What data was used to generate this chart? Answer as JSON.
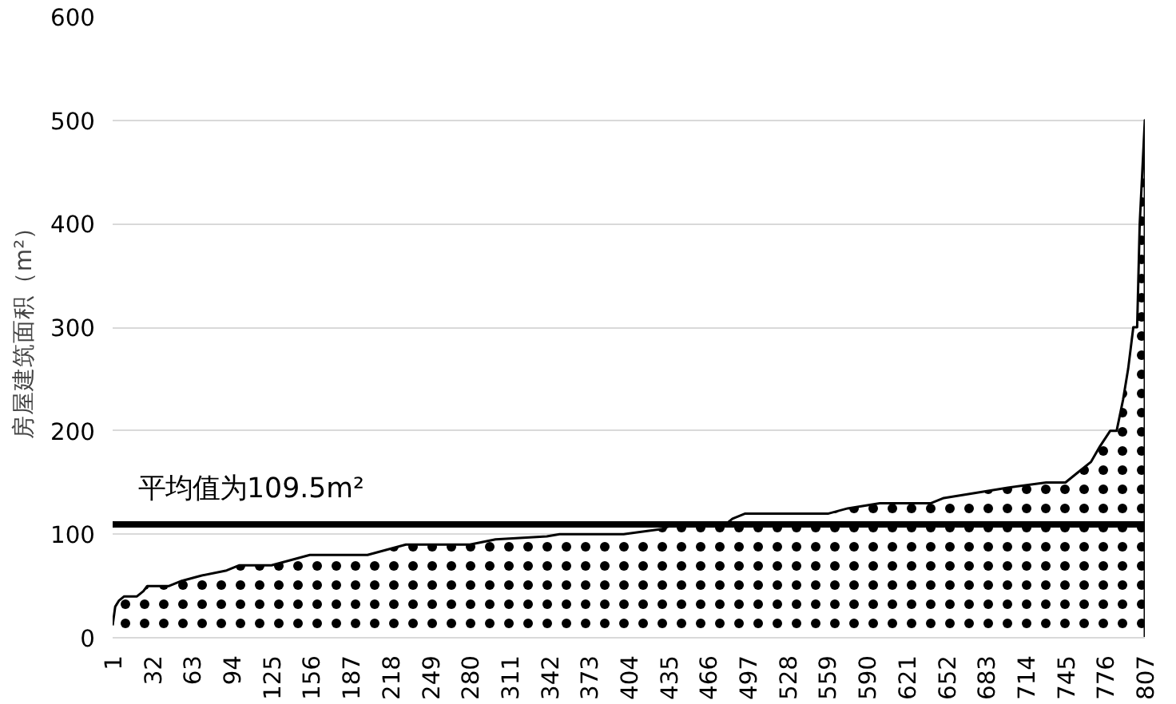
{
  "chart_data": {
    "type": "area",
    "ylabel": "房屋建筑面积（m²）",
    "x": [
      1,
      3,
      6,
      10,
      20,
      25,
      28,
      45,
      55,
      70,
      90,
      100,
      125,
      140,
      155,
      200,
      215,
      230,
      280,
      300,
      340,
      350,
      400,
      430,
      440,
      480,
      485,
      495,
      560,
      575,
      600,
      640,
      650,
      700,
      730,
      745,
      755,
      765,
      772,
      780,
      785,
      790,
      794,
      798,
      801,
      803,
      805,
      807
    ],
    "series": [
      {
        "color": "#000000",
        "values": [
          12,
          30,
          36,
          40,
          40,
          45,
          50,
          50,
          55,
          60,
          65,
          70,
          70,
          75,
          80,
          80,
          85,
          90,
          90,
          95,
          98,
          100,
          100,
          105,
          110,
          110,
          115,
          120,
          120,
          125,
          130,
          130,
          135,
          145,
          150,
          150,
          160,
          170,
          185,
          200,
          200,
          230,
          260,
          300,
          300,
          400,
          450,
          500
        ]
      }
    ],
    "xlim": [
      1,
      807
    ],
    "xticks": [
      1,
      32,
      63,
      94,
      125,
      156,
      187,
      218,
      249,
      280,
      311,
      342,
      373,
      404,
      435,
      466,
      497,
      528,
      559,
      590,
      621,
      652,
      683,
      714,
      745,
      776,
      807
    ],
    "ylim": [
      0,
      600
    ],
    "yticks": [
      0,
      100,
      200,
      300,
      400,
      500,
      600
    ],
    "grid": "y",
    "ref_lines": [
      {
        "axis": "y",
        "value": 109.5,
        "label": "平均值为109.5m²",
        "color": "#000000",
        "line_style": "solid"
      }
    ]
  }
}
